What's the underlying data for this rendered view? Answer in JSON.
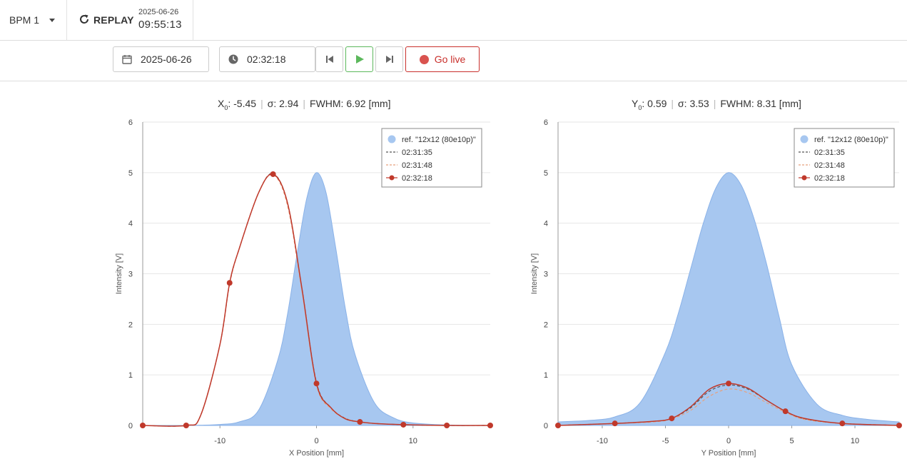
{
  "header": {
    "bpm_label": "BPM 1",
    "replay_label": "REPLAY",
    "replay_date": "2025-06-26",
    "replay_time": "09:55:13"
  },
  "controls": {
    "date": "2025-06-26",
    "time": "02:32:18",
    "go_live_label": "Go live"
  },
  "colors": {
    "reference_fill": "#a7c7f0",
    "reference_stroke": "#8ab2e8",
    "series_1": "#555555",
    "series_2": "#e8a07c",
    "series_3": "#c0392b",
    "play": "#5cb85c",
    "live": "#d9534f"
  },
  "charts": {
    "x": {
      "param_symbol": "X",
      "param_sub": "0",
      "center": ": -5.45",
      "sigma": "σ: 2.94",
      "fwhm": "FWHM: 6.92 [mm]"
    },
    "y": {
      "param_symbol": "Y",
      "param_sub": "0",
      "center": ": 0.59",
      "sigma": "σ: 3.53",
      "fwhm": "FWHM: 8.31 [mm]"
    }
  },
  "chart_data": [
    {
      "type": "area",
      "xlabel": "X Position [mm]",
      "ylabel": "Intensity [V]",
      "xlim": [
        -18,
        18
      ],
      "ylim": [
        0,
        6
      ],
      "xticks": [
        -10,
        0,
        10
      ],
      "yticks": [
        0,
        1,
        2,
        3,
        4,
        5,
        6
      ],
      "grid": true,
      "legend_position": "top-right",
      "series": [
        {
          "name": "ref. \"12x12 (80e10p)\"",
          "style": "filled-area",
          "x": [
            -18,
            -13.5,
            -12,
            -10,
            -8,
            -6,
            -4,
            -3,
            -2,
            -1,
            0,
            1,
            2,
            3,
            4,
            6,
            8,
            10,
            13.5,
            18
          ],
          "values": [
            0,
            0,
            0.005,
            0.02,
            0.07,
            0.3,
            1.3,
            2.2,
            3.4,
            4.5,
            5.0,
            4.6,
            3.5,
            2.3,
            1.4,
            0.45,
            0.15,
            0.05,
            0.01,
            0
          ]
        },
        {
          "name": "02:31:35",
          "style": "dashed",
          "x": [
            -18,
            -13.5,
            -12,
            -10,
            -9,
            -8,
            -6,
            -4.5,
            -3,
            -1.5,
            0,
            1.5,
            3,
            4.5,
            6,
            9,
            13.5,
            18
          ],
          "values": [
            0,
            0,
            0.2,
            1.6,
            2.8,
            3.5,
            4.6,
            4.98,
            4.4,
            2.7,
            0.85,
            0.35,
            0.14,
            0.07,
            0.04,
            0.015,
            0,
            0
          ]
        },
        {
          "name": "02:31:48",
          "style": "dashed",
          "x": [
            -18,
            -13.5,
            -12,
            -10,
            -9,
            -8,
            -6,
            -4.5,
            -3,
            -1.5,
            0,
            1.5,
            3,
            4.5,
            6,
            9,
            13.5,
            18
          ],
          "values": [
            0,
            0,
            0.2,
            1.6,
            2.8,
            3.5,
            4.6,
            4.96,
            4.35,
            2.65,
            0.8,
            0.33,
            0.14,
            0.07,
            0.04,
            0.015,
            0,
            0
          ]
        },
        {
          "name": "02:32:18",
          "style": "solid-markers",
          "x": [
            -18,
            -13.5,
            -12,
            -10,
            -9,
            -8,
            -6,
            -4.5,
            -3,
            -1.5,
            0,
            1.5,
            3,
            4.5,
            6,
            9,
            13.5,
            18
          ],
          "values": [
            0,
            0,
            0.2,
            1.6,
            2.82,
            3.5,
            4.6,
            4.97,
            4.4,
            2.7,
            0.83,
            0.35,
            0.13,
            0.07,
            0.04,
            0.015,
            0,
            0
          ],
          "markers_x": [
            -18,
            -13.5,
            -9,
            -4.5,
            0,
            4.5,
            9,
            13.5,
            18
          ]
        }
      ]
    },
    {
      "type": "area",
      "xlabel": "Y Position [mm]",
      "ylabel": "Intensity [V]",
      "xlim": [
        -13.5,
        13.5
      ],
      "ylim": [
        0,
        6
      ],
      "xticks": [
        -10,
        -5,
        0,
        5,
        10
      ],
      "yticks": [
        0,
        1,
        2,
        3,
        4,
        5,
        6
      ],
      "grid": true,
      "legend_position": "top-right",
      "series": [
        {
          "name": "ref. \"12x12 (80e10p)\"",
          "style": "filled-area",
          "x": [
            -13.5,
            -11,
            -9,
            -7,
            -5,
            -4,
            -3,
            -2,
            -1,
            0,
            1,
            2,
            3,
            4,
            5,
            7,
            9,
            11,
            13.5
          ],
          "values": [
            0.07,
            0.1,
            0.17,
            0.45,
            1.45,
            2.2,
            3.1,
            4.0,
            4.7,
            5.0,
            4.75,
            4.1,
            3.2,
            2.15,
            1.2,
            0.42,
            0.2,
            0.12,
            0.07
          ]
        },
        {
          "name": "02:31:35",
          "style": "dashed",
          "x": [
            -13.5,
            -9,
            -6,
            -4.5,
            -3,
            -1.5,
            0,
            1.5,
            3,
            4.5,
            6,
            9,
            13.5
          ],
          "values": [
            0,
            0.04,
            0.08,
            0.14,
            0.35,
            0.68,
            0.8,
            0.72,
            0.5,
            0.28,
            0.13,
            0.04,
            0
          ]
        },
        {
          "name": "02:31:48",
          "style": "dashed",
          "x": [
            -13.5,
            -9,
            -6,
            -4.5,
            -3,
            -1.5,
            0,
            1.5,
            3,
            4.5,
            6,
            9,
            13.5
          ],
          "values": [
            0,
            0.04,
            0.07,
            0.13,
            0.3,
            0.58,
            0.72,
            0.65,
            0.45,
            0.26,
            0.12,
            0.04,
            0
          ]
        },
        {
          "name": "02:32:18",
          "style": "solid-markers",
          "x": [
            -13.5,
            -9,
            -6,
            -4.5,
            -3,
            -1.5,
            0,
            1.5,
            3,
            4.5,
            6,
            9,
            13.5
          ],
          "values": [
            0,
            0.04,
            0.08,
            0.14,
            0.37,
            0.72,
            0.83,
            0.74,
            0.5,
            0.28,
            0.14,
            0.04,
            0
          ],
          "markers_x": [
            -13.5,
            -9,
            -4.5,
            0,
            4.5,
            9,
            13.5
          ]
        }
      ]
    }
  ]
}
